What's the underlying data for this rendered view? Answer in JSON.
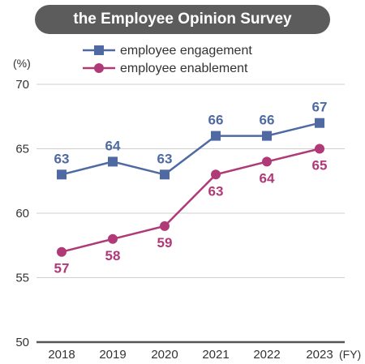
{
  "chart_data": {
    "type": "line",
    "title": "the Employee Opinion Survey",
    "ylabel": "(%)",
    "xunit": "(FY)",
    "ylim": [
      50,
      70
    ],
    "yticks": [
      50,
      55,
      60,
      65,
      70
    ],
    "categories": [
      "2018",
      "2019",
      "2020",
      "2021",
      "2022",
      "2023"
    ],
    "grid": true,
    "legend": "top-right",
    "series": [
      {
        "name": "employee engagement",
        "values": [
          63,
          64,
          63,
          66,
          66,
          67
        ],
        "color": "#4f6aa3",
        "marker": "square",
        "labels": "above"
      },
      {
        "name": "employee enablement",
        "values": [
          57,
          58,
          59,
          63,
          64,
          65
        ],
        "color": "#b03a78",
        "marker": "circle",
        "labels": "below"
      }
    ]
  }
}
